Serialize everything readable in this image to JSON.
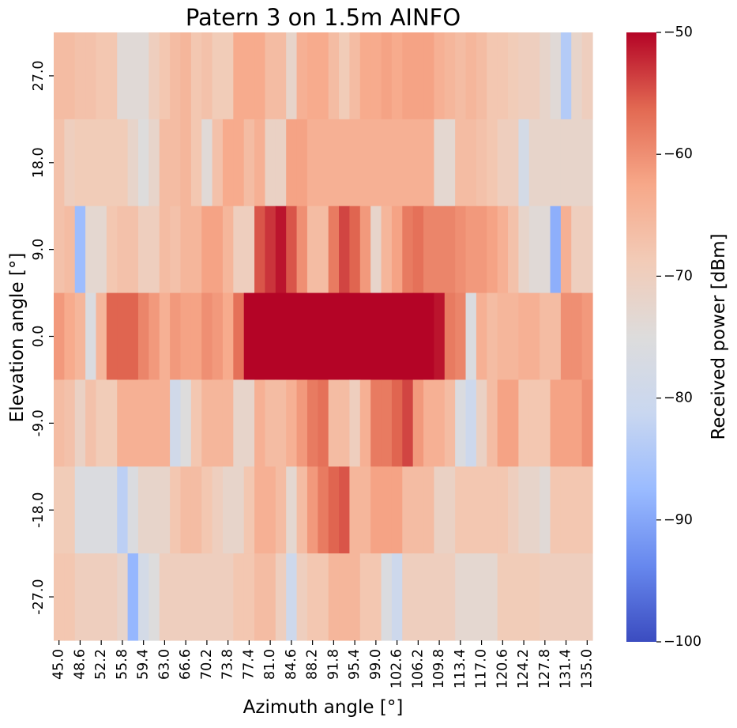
{
  "chart_data": {
    "type": "heatmap",
    "title": "Patern 3 on 1.5m AINFO",
    "xlabel": "Azimuth angle [°]",
    "ylabel": "Elevation angle [°]",
    "x": [
      "45.0",
      "46.8",
      "48.6",
      "50.4",
      "52.2",
      "54.0",
      "55.8",
      "57.6",
      "59.4",
      "61.2",
      "63.0",
      "64.8",
      "66.6",
      "68.4",
      "70.2",
      "72.0",
      "73.8",
      "75.6",
      "77.4",
      "79.2",
      "81.0",
      "82.8",
      "84.6",
      "86.4",
      "88.2",
      "90.0",
      "91.8",
      "93.6",
      "95.4",
      "97.2",
      "99.0",
      "100.8",
      "102.6",
      "104.4",
      "106.2",
      "108.0",
      "109.8",
      "111.6",
      "113.4",
      "115.2",
      "117.0",
      "118.8",
      "120.6",
      "122.4",
      "124.2",
      "126.0",
      "127.8",
      "129.6",
      "131.4",
      "133.2",
      "135.0"
    ],
    "x_tick_labels": [
      "45.0",
      "48.6",
      "52.2",
      "55.8",
      "59.4",
      "63.0",
      "66.6",
      "70.2",
      "73.8",
      "77.4",
      "81.0",
      "84.6",
      "88.2",
      "91.8",
      "95.4",
      "99.0",
      "102.6",
      "106.2",
      "109.8",
      "113.4",
      "117.0",
      "120.6",
      "124.2",
      "127.8",
      "131.4",
      "135.0"
    ],
    "y": [
      "27.0",
      "18.0",
      "9.0",
      "0.0",
      "-9.0",
      "-18.0",
      "-27.0"
    ],
    "y_tick_labels": [
      "27.0",
      "18.0",
      "9.0",
      "0.0",
      "-9.0",
      "-18.0",
      "-27.0"
    ],
    "values": [
      [
        -66,
        -66,
        -67,
        -67,
        -68,
        -68,
        -74,
        -74,
        -74,
        -70,
        -68,
        -66,
        -65,
        -68,
        -67,
        -69,
        -69,
        -63,
        -63,
        -63,
        -66,
        -66,
        -72,
        -64,
        -63,
        -63,
        -66,
        -69,
        -66,
        -63,
        -63,
        -62,
        -63,
        -62,
        -62,
        -62,
        -64,
        -65,
        -66,
        -65,
        -66,
        -68,
        -68,
        -69,
        -70,
        -70,
        -72,
        -74,
        -84,
        -72,
        -70
      ],
      [
        -67,
        -70,
        -69,
        -69,
        -69,
        -69,
        -69,
        -72,
        -75,
        -72,
        -66,
        -66,
        -65,
        -68,
        -74,
        -67,
        -63,
        -63,
        -66,
        -64,
        -71,
        -71,
        -62,
        -62,
        -64,
        -64,
        -64,
        -64,
        -64,
        -64,
        -64,
        -64,
        -64,
        -64,
        -64,
        -64,
        -73,
        -73,
        -66,
        -66,
        -67,
        -68,
        -70,
        -70,
        -78,
        -72,
        -72,
        -72,
        -72,
        -72,
        -72
      ],
      [
        -67,
        -66,
        -87,
        -73,
        -73,
        -68,
        -67,
        -67,
        -70,
        -70,
        -66,
        -67,
        -65,
        -65,
        -62,
        -62,
        -65,
        -70,
        -70,
        -55,
        -53,
        -51,
        -55,
        -60,
        -66,
        -66,
        -58,
        -54,
        -56,
        -61,
        -72,
        -65,
        -62,
        -58,
        -57,
        -59,
        -59,
        -59,
        -60,
        -61,
        -61,
        -62,
        -64,
        -67,
        -72,
        -74,
        -74,
        -89,
        -64,
        -70,
        -70
      ],
      [
        -61,
        -63,
        -65,
        -76,
        -65,
        -56,
        -56,
        -56,
        -59,
        -61,
        -64,
        -61,
        -62,
        -62,
        -60,
        -61,
        -63,
        -57,
        -50,
        -50,
        -50,
        -50,
        -50,
        -50,
        -50,
        -50,
        -50,
        -50,
        -50,
        -50,
        -50,
        -50,
        -50,
        -50,
        -50,
        -50,
        -51,
        -58,
        -59,
        -76,
        -64,
        -66,
        -65,
        -65,
        -64,
        -64,
        -66,
        -66,
        -60,
        -60,
        -61
      ],
      [
        -66,
        -67,
        -71,
        -67,
        -69,
        -69,
        -64,
        -64,
        -64,
        -64,
        -64,
        -79,
        -75,
        -68,
        -65,
        -65,
        -65,
        -72,
        -72,
        -64,
        -66,
        -66,
        -64,
        -61,
        -58,
        -57,
        -66,
        -66,
        -70,
        -64,
        -58,
        -58,
        -56,
        -54,
        -61,
        -64,
        -64,
        -66,
        -76,
        -80,
        -71,
        -66,
        -62,
        -62,
        -68,
        -68,
        -68,
        -62,
        -62,
        -62,
        -60
      ],
      [
        -69,
        -69,
        -76,
        -76,
        -76,
        -76,
        -83,
        -76,
        -72,
        -72,
        -72,
        -68,
        -66,
        -66,
        -68,
        -70,
        -72,
        -72,
        -68,
        -64,
        -64,
        -66,
        -73,
        -66,
        -61,
        -58,
        -56,
        -55,
        -65,
        -65,
        -62,
        -62,
        -62,
        -66,
        -66,
        -66,
        -71,
        -71,
        -68,
        -68,
        -68,
        -68,
        -68,
        -70,
        -72,
        -72,
        -74,
        -68,
        -68,
        -68,
        -68
      ],
      [
        -68,
        -68,
        -70,
        -70,
        -70,
        -70,
        -72,
        -88,
        -78,
        -75,
        -70,
        -70,
        -70,
        -70,
        -70,
        -70,
        -70,
        -68,
        -68,
        -66,
        -66,
        -70,
        -80,
        -70,
        -68,
        -68,
        -65,
        -65,
        -65,
        -68,
        -68,
        -76,
        -80,
        -70,
        -70,
        -70,
        -70,
        -70,
        -73,
        -73,
        -73,
        -73,
        -69,
        -69,
        -69,
        -69,
        -70,
        -70,
        -70,
        -70,
        -70
      ]
    ],
    "zlabel": "Received power [dBm]",
    "zlim": [
      -100,
      -50
    ],
    "colorbar_ticks": [
      "−50",
      "−60",
      "−70",
      "−80",
      "−90",
      "−100"
    ],
    "colormap": "coolwarm",
    "colormap_stops": [
      "#3b4cc0",
      "#6788ee",
      "#9abbff",
      "#c9d7f0",
      "#dddcdc",
      "#f2cbb7",
      "#f7a889",
      "#e26952",
      "#b40426"
    ]
  }
}
